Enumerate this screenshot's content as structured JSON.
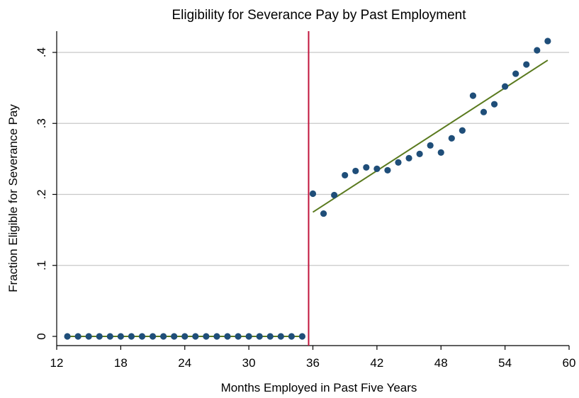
{
  "chart_data": {
    "type": "scatter",
    "title": "Eligibility for Severance Pay by Past Employment",
    "xlabel": "Months Employed in Past Five Years",
    "ylabel": "Fraction Eligible for Severance Pay",
    "xlim": [
      12,
      60
    ],
    "ylim": [
      0,
      0.4
    ],
    "x_ticks": [
      12,
      18,
      24,
      30,
      36,
      42,
      48,
      54,
      60
    ],
    "x_tick_labels": [
      "12",
      "18",
      "24",
      "30",
      "36",
      "42",
      "48",
      "54",
      "60"
    ],
    "y_ticks": [
      0,
      0.1,
      0.2,
      0.3,
      0.4
    ],
    "y_tick_labels": [
      "0",
      ".1",
      ".2",
      ".3",
      ".4"
    ],
    "grid": "horizontal",
    "cutoff_x": 35.6,
    "colors": {
      "points": "#1f4e79",
      "fit_line": "#5a7a1e",
      "cutoff_line": "#c0143c",
      "grid": "#c8c8c8"
    },
    "points": {
      "x": [
        13,
        14,
        15,
        16,
        17,
        18,
        19,
        20,
        21,
        22,
        23,
        24,
        25,
        26,
        27,
        28,
        29,
        30,
        31,
        32,
        33,
        34,
        35,
        36,
        37,
        38,
        39,
        40,
        41,
        42,
        43,
        44,
        45,
        46,
        47,
        48,
        49,
        50,
        51,
        52,
        53,
        54,
        55,
        56,
        57,
        58
      ],
      "y": [
        0,
        0,
        0,
        0,
        0,
        0,
        0,
        0,
        0,
        0,
        0,
        0,
        0,
        0,
        0,
        0,
        0,
        0,
        0,
        0,
        0,
        0,
        0,
        0.201,
        0.173,
        0.199,
        0.227,
        0.233,
        0.238,
        0.236,
        0.234,
        0.245,
        0.251,
        0.257,
        0.269,
        0.259,
        0.279,
        0.29,
        0.339,
        0.316,
        0.327,
        0.352,
        0.37,
        0.383,
        0.403,
        0.416
      ]
    },
    "fit_lines": [
      {
        "x": [
          13,
          35
        ],
        "y": [
          0,
          0
        ]
      },
      {
        "x": [
          36,
          58
        ],
        "y": [
          0.175,
          0.389
        ]
      }
    ]
  }
}
